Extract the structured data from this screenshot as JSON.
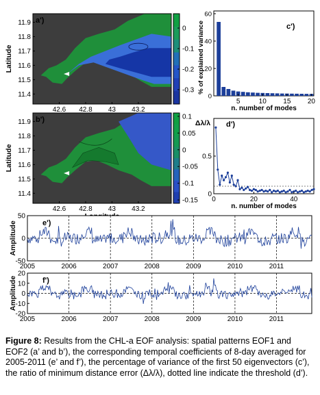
{
  "chart_data": [
    {
      "type": "heatmap",
      "panel_label": "a')",
      "xlabel": "",
      "ylabel": "Latitude",
      "xticks": [
        "42.6",
        "42.8",
        "43",
        "43.2"
      ],
      "yticks": [
        "11.9",
        "11.8",
        "11.7",
        "11.6",
        "11.5",
        "11.4"
      ],
      "xlim": [
        42.4,
        43.45
      ],
      "ylim": [
        11.33,
        11.96
      ],
      "colorbar_ticks": [
        "0",
        "-0.1",
        "-0.2",
        "-0.3"
      ],
      "colorbar_range": [
        -0.37,
        0.07
      ],
      "colors": {
        "land": "#3d3d3d",
        "green": "#1f8f3a",
        "light_blue": "#3a6fd8",
        "dark_blue": "#1536a6"
      }
    },
    {
      "type": "bar",
      "panel_label": "c')",
      "xlabel": "n. number of modes",
      "ylabel": "% of explained variance",
      "xticks": [
        "5",
        "10",
        "15",
        "20"
      ],
      "yticks": [
        "0",
        "20",
        "40",
        "60"
      ],
      "xlim": [
        0,
        20.5
      ],
      "ylim": [
        0,
        62
      ],
      "categories": [
        1,
        2,
        3,
        4,
        5,
        6,
        7,
        8,
        9,
        10,
        11,
        12,
        13,
        14,
        15,
        16,
        17,
        18,
        19,
        20
      ],
      "values": [
        54,
        6.5,
        5,
        3.8,
        3.2,
        2.9,
        2.6,
        2.4,
        2.2,
        2.1,
        2.0,
        1.9,
        1.8,
        1.7,
        1.65,
        1.6,
        1.55,
        1.5,
        1.45,
        1.4
      ],
      "bar_color": "#1c3f9a"
    },
    {
      "type": "heatmap",
      "panel_label": "b')",
      "xlabel": "Longitude",
      "ylabel": "Latitude",
      "xticks": [
        "42.6",
        "42.8",
        "43",
        "43.2"
      ],
      "yticks": [
        "11.9",
        "11.8",
        "11.7",
        "11.6",
        "11.5",
        "11.4"
      ],
      "xlim": [
        42.4,
        43.45
      ],
      "ylim": [
        11.33,
        11.96
      ],
      "colorbar_ticks": [
        "0.1",
        "0.05",
        "0",
        "-0.05",
        "-0.1",
        "-0.15"
      ],
      "colorbar_range": [
        -0.16,
        0.11
      ],
      "colors": {
        "land": "#3d3d3d",
        "green": "#1f8f3a",
        "dark_green": "#157a2e",
        "blue": "#3558c8"
      }
    },
    {
      "type": "line",
      "panel_label": "d')",
      "xlabel": "n. number of modes",
      "ylabel": "Δλ/λ",
      "xticks": [
        "0",
        "20",
        "40"
      ],
      "yticks": [
        "0",
        "0.5"
      ],
      "xlim": [
        0,
        50
      ],
      "ylim": [
        0,
        1.0
      ],
      "threshold": 0.1,
      "x": [
        1,
        2,
        3,
        4,
        5,
        6,
        7,
        8,
        9,
        10,
        11,
        12,
        13,
        14,
        15,
        16,
        17,
        18,
        19,
        20,
        21,
        22,
        23,
        24,
        25,
        26,
        27,
        28,
        29,
        30,
        31,
        32,
        33,
        34,
        35,
        36,
        37,
        38,
        39,
        40,
        41,
        42,
        43,
        44,
        45,
        46,
        47,
        48,
        49,
        50
      ],
      "y": [
        0.88,
        0.32,
        0.12,
        0.24,
        0.18,
        0.22,
        0.28,
        0.15,
        0.24,
        0.12,
        0.1,
        0.18,
        0.06,
        0.08,
        0.05,
        0.07,
        0.09,
        0.05,
        0.04,
        0.06,
        0.05,
        0.03,
        0.04,
        0.05,
        0.03,
        0.04,
        0.03,
        0.05,
        0.02,
        0.04,
        0.03,
        0.04,
        0.02,
        0.03,
        0.04,
        0.02,
        0.03,
        0.05,
        0.02,
        0.03,
        0.04,
        0.02,
        0.03,
        0.04,
        0.02,
        0.03,
        0.04,
        0.03,
        0.05,
        0.06
      ],
      "line_color": "#1c3f9a"
    },
    {
      "type": "line",
      "panel_label": "e')",
      "xlabel": "",
      "ylabel": "Amplitude",
      "xticks": [
        "2005",
        "2006",
        "2007",
        "2008",
        "2009",
        "2010",
        "2011"
      ],
      "yticks": [
        "50",
        "0",
        "-50"
      ],
      "xlim": [
        2005,
        2011.85
      ],
      "ylim": [
        -50,
        50
      ],
      "line_color": "#1c3f9a"
    },
    {
      "type": "line",
      "panel_label": "f')",
      "xlabel": "",
      "ylabel": "Amplitude",
      "xticks": [
        "2005",
        "2006",
        "2007",
        "2008",
        "2009",
        "2010",
        "2011"
      ],
      "yticks": [
        "20",
        "10",
        "0",
        "-10",
        "-20"
      ],
      "xlim": [
        2005,
        2011.85
      ],
      "ylim": [
        -20,
        20
      ],
      "line_color": "#1c3f9a"
    }
  ],
  "caption": {
    "label": "Figure 8:",
    "text": "Results from the CHL-a EOF analysis: spatial patterns EOF1 and EOF2 (a’ and b’), the corresponding temporal coefficients of 8-day averaged for 2005-2011 (e’ and f’), the percentage of variance of the first 50 eigenvectors (c’), the ratio of minimum distance error (Δλ/λ), dotted line indicate the threshold (d’)."
  }
}
